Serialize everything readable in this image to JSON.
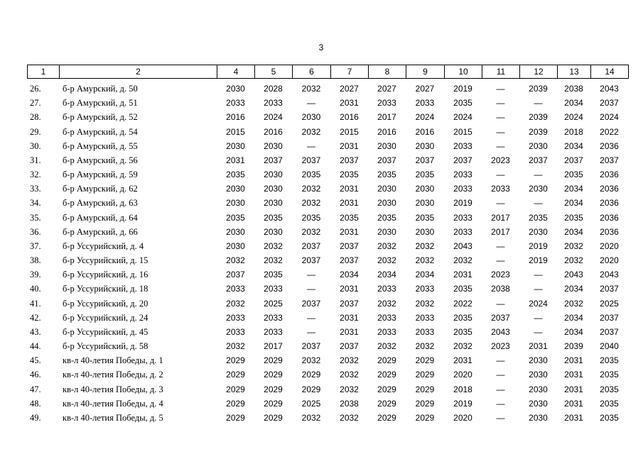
{
  "page_number": "3",
  "table": {
    "header": [
      "1",
      "2",
      "4",
      "5",
      "6",
      "7",
      "8",
      "9",
      "10",
      "11",
      "12",
      "13",
      "14"
    ],
    "rows": [
      [
        "26.",
        "б-р Амурский, д. 50",
        2030,
        2028,
        2032,
        2027,
        2027,
        2027,
        2019,
        "—",
        2039,
        2038,
        2043
      ],
      [
        "27.",
        "б-р Амурский, д. 51",
        2033,
        2033,
        "—",
        2031,
        2033,
        2033,
        2035,
        "—",
        "—",
        2034,
        2037
      ],
      [
        "28.",
        "б-р Амурский, д. 52",
        2016,
        2024,
        2030,
        2016,
        2017,
        2024,
        2024,
        "—",
        2039,
        2024,
        2024
      ],
      [
        "29.",
        "б-р Амурский, д. 54",
        2015,
        2016,
        2032,
        2015,
        2016,
        2016,
        2015,
        "—",
        2039,
        2018,
        2022
      ],
      [
        "30.",
        "б-р Амурский, д. 55",
        2030,
        2030,
        "—",
        2031,
        2030,
        2030,
        2033,
        "—",
        2030,
        2034,
        2036
      ],
      [
        "31.",
        "б-р Амурский, д. 56",
        2031,
        2037,
        2037,
        2037,
        2037,
        2037,
        2037,
        2023,
        2037,
        2037,
        2037
      ],
      [
        "32.",
        "б-р Амурский, д. 59",
        2035,
        2030,
        2035,
        2035,
        2035,
        2035,
        2033,
        "—",
        "—",
        2035,
        2036
      ],
      [
        "33.",
        "б-р Амурский, д. 62",
        2030,
        2030,
        2032,
        2031,
        2030,
        2030,
        2033,
        2033,
        2030,
        2034,
        2036
      ],
      [
        "34.",
        "б-р Амурский, д. 63",
        2030,
        2030,
        2032,
        2031,
        2030,
        2030,
        2019,
        "—",
        "—",
        2034,
        2036
      ],
      [
        "35.",
        "б-р Амурский, д. 64",
        2035,
        2035,
        2035,
        2035,
        2035,
        2035,
        2033,
        2017,
        2035,
        2035,
        2036
      ],
      [
        "36.",
        "б-р Амурский, д. 66",
        2030,
        2030,
        2032,
        2031,
        2030,
        2030,
        2033,
        2017,
        2030,
        2034,
        2036
      ],
      [
        "37.",
        "б-р Уссурийский, д. 4",
        2030,
        2032,
        2037,
        2037,
        2032,
        2032,
        2043,
        "—",
        2019,
        2032,
        2020
      ],
      [
        "38.",
        "б-р Уссурийский, д. 15",
        2032,
        2032,
        2037,
        2037,
        2032,
        2032,
        2032,
        "—",
        2019,
        2032,
        2020
      ],
      [
        "39.",
        "б-р Уссурийский, д. 16",
        2037,
        2035,
        "—",
        2034,
        2034,
        2034,
        2031,
        2023,
        "—",
        2043,
        2043
      ],
      [
        "40.",
        "б-р Уссурийский, д. 18",
        2033,
        2033,
        "—",
        2031,
        2033,
        2033,
        2035,
        2038,
        "—",
        2034,
        2037
      ],
      [
        "41.",
        "б-р Уссурийский, д. 20",
        2032,
        2025,
        2037,
        2037,
        2032,
        2032,
        2022,
        "—",
        2024,
        2032,
        2025
      ],
      [
        "42.",
        "б-р Уссурийский, д. 24",
        2033,
        2033,
        "—",
        2031,
        2033,
        2033,
        2035,
        2037,
        "—",
        2034,
        2037
      ],
      [
        "43.",
        "б-р Уссурийский, д. 45",
        2033,
        2033,
        "—",
        2031,
        2033,
        2033,
        2035,
        2043,
        "—",
        2034,
        2037
      ],
      [
        "44.",
        "б-р Уссурийский, д. 58",
        2032,
        2017,
        2037,
        2037,
        2032,
        2032,
        2032,
        2023,
        2031,
        2039,
        2040
      ],
      [
        "45.",
        "кв-л 40-летия Победы, д. 1",
        2029,
        2029,
        2032,
        2032,
        2029,
        2029,
        2031,
        "—",
        2030,
        2031,
        2035
      ],
      [
        "46.",
        "кв-л 40-летия Победы, д. 2",
        2029,
        2029,
        2029,
        2032,
        2029,
        2029,
        2020,
        "—",
        2030,
        2031,
        2035
      ],
      [
        "47.",
        "кв-л 40-летия Победы, д. 3",
        2029,
        2029,
        2029,
        2032,
        2029,
        2029,
        2018,
        "—",
        2030,
        2031,
        2035
      ],
      [
        "48.",
        "кв-л 40-летия Победы, д. 4",
        2029,
        2029,
        2025,
        2038,
        2029,
        2029,
        2019,
        "—",
        2030,
        2031,
        2035
      ],
      [
        "49.",
        "кв-л 40-летия Победы, д. 5",
        2029,
        2029,
        2032,
        2032,
        2029,
        2029,
        2020,
        "—",
        2030,
        2031,
        2035
      ]
    ]
  }
}
